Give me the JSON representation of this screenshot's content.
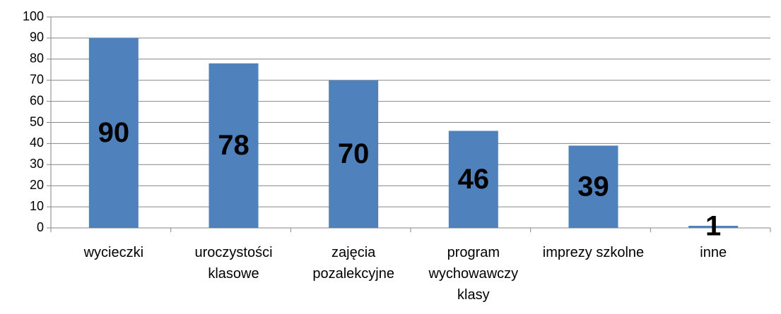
{
  "chart_data": {
    "type": "bar",
    "categories": [
      "wycieczki",
      "uroczystości klasowe",
      "zajęcia pozalekcyjne",
      "program wychowawczy klasy",
      "imprezy szkolne",
      "inne"
    ],
    "values": [
      90,
      78,
      70,
      46,
      39,
      1
    ],
    "color": "#4f81bd",
    "ylim": [
      0,
      100
    ],
    "yticks": [
      0,
      10,
      20,
      30,
      40,
      50,
      60,
      70,
      80,
      90,
      100
    ],
    "grid": true
  }
}
